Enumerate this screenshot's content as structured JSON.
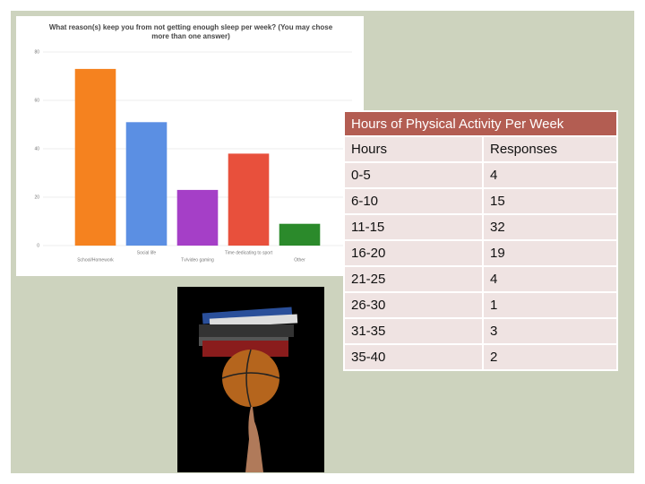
{
  "chart_data": {
    "type": "bar",
    "title": "What reason(s) keep you from not getting enough sleep per week? (You may chose more than one answer)",
    "categories": [
      "School/Homework",
      "Social life",
      "Tv/video gaming",
      "Time dedicating to sport",
      "Other"
    ],
    "values": [
      73,
      51,
      23,
      38,
      9
    ],
    "colors": [
      "#f5821f",
      "#5b8fe3",
      "#a53fc7",
      "#e8503c",
      "#2b8a2b"
    ],
    "ylim": [
      0,
      80
    ],
    "yticks": [
      0,
      20,
      40,
      60,
      80
    ],
    "grid": true
  },
  "table": {
    "title": "Hours of Physical Activity Per Week",
    "header": [
      "Hours",
      "Responses"
    ],
    "rows": [
      [
        "0-5",
        "4"
      ],
      [
        "6-10",
        "15"
      ],
      [
        "11-15",
        "32"
      ],
      [
        "16-20",
        "19"
      ],
      [
        "21-25",
        "4"
      ],
      [
        "26-30",
        "1"
      ],
      [
        "31-35",
        "3"
      ],
      [
        "35-40",
        "2"
      ]
    ]
  }
}
